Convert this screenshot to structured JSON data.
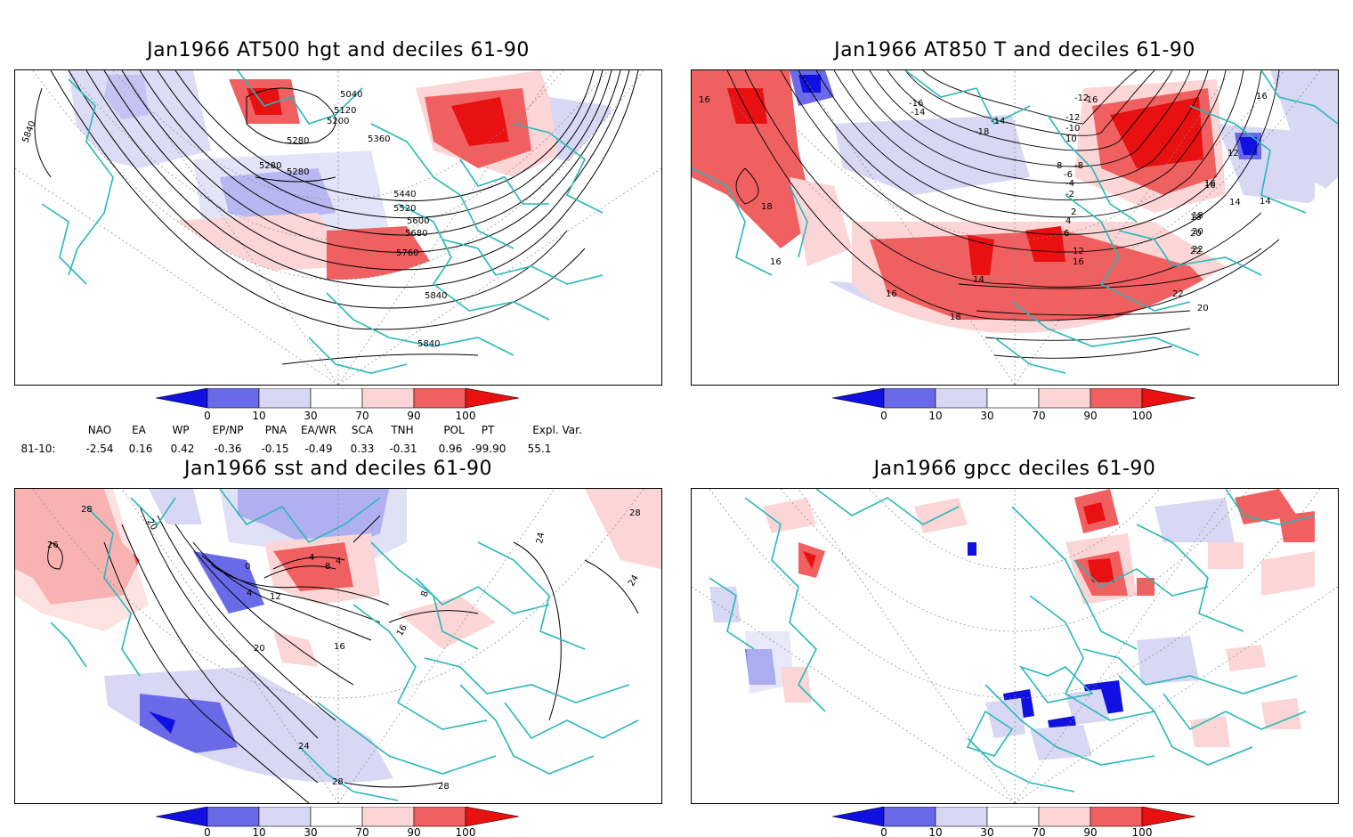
{
  "panels": [
    {
      "title": "Jan1966 AT500 hgt and deciles 61-90",
      "contour_labels": [
        "5040",
        "5120",
        "5200",
        "5280",
        "5280",
        "5280",
        "5360",
        "5440",
        "5520",
        "5600",
        "5680",
        "5760",
        "5840",
        "5840",
        "5840"
      ]
    },
    {
      "title": "Jan1966 AT850 T and deciles 61-90",
      "contour_labels": [
        "16",
        "16",
        "18",
        "16",
        "16",
        "14",
        "12",
        "14",
        "16",
        "18",
        "20",
        "22",
        "22",
        "20",
        "18",
        "16",
        "12",
        "10",
        "8",
        "6",
        "4",
        "2",
        "-2",
        "-4",
        "-6",
        "-8",
        "-10",
        "-12",
        "-14",
        "-16",
        "-18",
        "-14",
        "-12",
        "-16",
        "14",
        "16",
        "18",
        "20",
        "22"
      ]
    },
    {
      "title": "Jan1966 sst and deciles 61-90",
      "contour_labels": [
        "28",
        "28",
        "26",
        "24",
        "20",
        "24",
        "20",
        "16",
        "16",
        "12",
        "8",
        "4",
        "0",
        "4",
        "4",
        "8",
        "28",
        "28",
        "24"
      ]
    },
    {
      "title": "Jan1966 gpcc deciles 61-90",
      "contour_labels": []
    }
  ],
  "colorbar": {
    "ticks": [
      "0",
      "10",
      "30",
      "70",
      "90",
      "100"
    ],
    "colors": [
      "#1010e0",
      "#6a6ae8",
      "#d8d8f5",
      "#ffffff",
      "#fcd6d6",
      "#f06060",
      "#e81010"
    ]
  },
  "indices": {
    "row_label": "81-10:",
    "headers": [
      "NAO",
      "EA",
      "WP",
      "EP/NP",
      "PNA",
      "EA/WR",
      "SCA",
      "TNH",
      "POL",
      "PT",
      "Expl. Var."
    ],
    "values": [
      "-2.54",
      "0.16",
      "0.42",
      "-0.36",
      "-0.15",
      "-0.49",
      "0.33",
      "-0.31",
      "0.96",
      "-99.90",
      "55.1"
    ]
  },
  "colors": {
    "coast": "#2ab8b8",
    "contour": "#000000",
    "grid": "#888888"
  }
}
